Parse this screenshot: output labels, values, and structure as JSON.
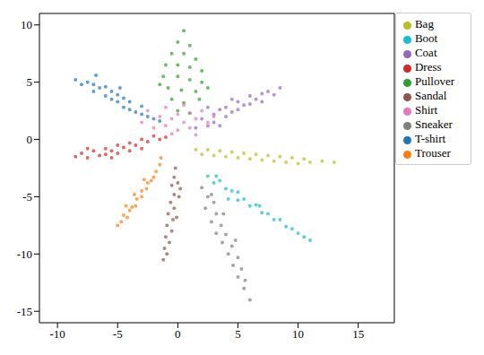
{
  "chart_data": {
    "type": "scatter",
    "xlim": [
      -11.5,
      18
    ],
    "ylim": [
      -16,
      11
    ],
    "xticks": [
      -10,
      -5,
      0,
      5,
      10,
      15
    ],
    "yticks": [
      -15,
      -10,
      -5,
      0,
      5,
      10
    ],
    "grid": false,
    "legend": "upper right",
    "marker": "circle",
    "series": [
      {
        "name": "T-shirt",
        "color": "#1f77b4",
        "x": [
          -8.5,
          -8,
          -7.5,
          -7,
          -7,
          -6.5,
          -6,
          -6,
          -5.5,
          -5.5,
          -5,
          -5,
          -4.5,
          -4.5,
          -4,
          -4,
          -3.5,
          -3,
          -3,
          -2.5,
          -2,
          -1.5,
          -6.8,
          -4.8
        ],
        "y": [
          5.2,
          4.8,
          5,
          4.2,
          4.8,
          4.5,
          3.8,
          4.6,
          3.5,
          4.2,
          3.3,
          3.9,
          2.8,
          3.6,
          2.6,
          3.3,
          2.4,
          2.2,
          2.9,
          2,
          1.8,
          1.6,
          5.6,
          4.5
        ]
      },
      {
        "name": "Trouser",
        "color": "#ff7f0e",
        "x": [
          -1.5,
          -1.8,
          -2,
          -2.2,
          -2.5,
          -2.6,
          -3,
          -3,
          -3.4,
          -3.5,
          -3.8,
          -4,
          -4.2,
          -4.5,
          -4.7,
          -5,
          -2.8,
          -3.6,
          -4.3,
          -1.4
        ],
        "y": [
          -2.2,
          -2.8,
          -3.3,
          -3.6,
          -3.8,
          -4.3,
          -4.5,
          -5,
          -5.2,
          -5.8,
          -5.9,
          -6.2,
          -6.8,
          -6.6,
          -7.2,
          -7.5,
          -3.5,
          -4.8,
          -5.8,
          -1.6
        ]
      },
      {
        "name": "Pullover",
        "color": "#2ca02c",
        "x": [
          0.5,
          0,
          1,
          -0.5,
          0.5,
          1.5,
          -1,
          0,
          1,
          2,
          -1.2,
          0,
          1,
          2,
          -0.8,
          0.3,
          1.5,
          -0.5,
          0.5,
          1.8,
          0,
          1,
          -1.5,
          2.5
        ],
        "y": [
          9.5,
          8.5,
          8.2,
          7.5,
          7.5,
          7,
          6.5,
          6.5,
          6.3,
          6,
          5.5,
          5.5,
          5.2,
          5,
          4.5,
          4.3,
          4.2,
          3.5,
          3.2,
          3.5,
          2.5,
          2.3,
          4.8,
          4.5
        ]
      },
      {
        "name": "Dress",
        "color": "#d62728",
        "x": [
          -8.5,
          -8,
          -7.5,
          -7,
          -6.5,
          -6,
          -6,
          -5.5,
          -5,
          -5,
          -4.5,
          -4,
          -4,
          -3.5,
          -3,
          -3,
          -2.5,
          -2,
          -1.5,
          -1,
          -7.5,
          -5.5
        ],
        "y": [
          -1.5,
          -1.2,
          -1.6,
          -1,
          -1.4,
          -0.8,
          -1.3,
          -1,
          -0.5,
          -1.2,
          -0.7,
          -0.3,
          -1,
          -0.5,
          0,
          -0.8,
          -0.2,
          0.3,
          0,
          0.2,
          -0.8,
          -1.6
        ]
      },
      {
        "name": "Coat",
        "color": "#9467bd",
        "x": [
          1.5,
          2,
          2.5,
          3,
          3,
          3.5,
          4,
          4,
          4.5,
          5,
          5,
          5.5,
          6,
          6,
          6.5,
          7,
          7,
          7.5,
          8,
          8.5,
          2.5,
          4.5,
          3.5
        ],
        "y": [
          1,
          1.8,
          1.2,
          2.2,
          1.5,
          2.6,
          2,
          2.8,
          2.4,
          3.3,
          2.6,
          3,
          3.8,
          3.1,
          3.5,
          4,
          3.3,
          4.2,
          3.9,
          4.5,
          2.8,
          3.5,
          1.2
        ]
      },
      {
        "name": "Sandal",
        "color": "#8c564b",
        "x": [
          -0.2,
          -0.3,
          0,
          -0.5,
          -0.3,
          0.1,
          -0.6,
          -0.3,
          -0.8,
          -0.4,
          -0.9,
          -0.5,
          -1,
          -0.7,
          -1.1,
          -0.9,
          -1.2,
          0.2,
          -0.1
        ],
        "y": [
          -2.5,
          -3.3,
          -3.8,
          -4,
          -4.8,
          -5,
          -5.5,
          -6,
          -6.5,
          -7,
          -7.5,
          -8,
          -8.5,
          -9,
          -9.5,
          -10,
          -10.5,
          -4.3,
          -6.8
        ]
      },
      {
        "name": "Shirt",
        "color": "#e377c2",
        "x": [
          -3,
          -2.5,
          -2,
          -1.5,
          -1,
          -1,
          -0.5,
          0,
          0,
          0.5,
          0.5,
          1,
          1,
          1.5,
          2,
          2.5,
          -0.5,
          1.5,
          3
        ],
        "y": [
          1.5,
          2.5,
          1,
          2,
          1.2,
          2.8,
          1.8,
          0.8,
          2.2,
          1.5,
          3,
          1,
          2.3,
          1.8,
          2.5,
          1.5,
          0.5,
          0.4,
          2
        ]
      },
      {
        "name": "Sneaker",
        "color": "#7f7f7f",
        "x": [
          2,
          2.5,
          3,
          2.3,
          3.2,
          2.8,
          3.6,
          3.2,
          4,
          3.7,
          4.5,
          4.2,
          5,
          4.6,
          5.3,
          5,
          5.6,
          5.5,
          6,
          3.8,
          4.8,
          2.8
        ],
        "y": [
          -4.2,
          -5,
          -5.5,
          -6,
          -6.5,
          -7.2,
          -7.5,
          -8.2,
          -8.3,
          -9,
          -9.3,
          -10,
          -10.3,
          -11,
          -11.3,
          -12,
          -12.3,
          -13,
          -14,
          -6.5,
          -8.8,
          -4.8
        ]
      },
      {
        "name": "Bag",
        "color": "#bcbd22",
        "x": [
          1.5,
          2,
          2.5,
          3,
          3.5,
          4,
          4.5,
          5,
          5.5,
          6,
          6.5,
          7,
          7.5,
          8,
          8.5,
          9,
          9.5,
          10,
          10.5,
          11,
          12,
          13
        ],
        "y": [
          -0.9,
          -1.3,
          -0.9,
          -1.4,
          -1,
          -1.5,
          -1.1,
          -1.6,
          -1.2,
          -1.7,
          -1.3,
          -1.8,
          -1.4,
          -1.9,
          -1.5,
          -2,
          -1.6,
          -2.1,
          -1.7,
          -2,
          -1.9,
          -2
        ]
      },
      {
        "name": "Boot",
        "color": "#17becf",
        "x": [
          2.5,
          3,
          3.5,
          4,
          4.5,
          5,
          5,
          5.5,
          6,
          6.5,
          7,
          7.5,
          8,
          8.5,
          9,
          9.5,
          10,
          10.5,
          11,
          4.2,
          6.8,
          3.2
        ],
        "y": [
          -3.2,
          -3.8,
          -3.6,
          -4.3,
          -4.5,
          -4.6,
          -5.3,
          -5.2,
          -5.8,
          -5.7,
          -6.4,
          -6.5,
          -7,
          -7,
          -7.6,
          -7.8,
          -8.2,
          -8.5,
          -8.8,
          -5.2,
          -5.8,
          -3.2
        ]
      }
    ]
  }
}
